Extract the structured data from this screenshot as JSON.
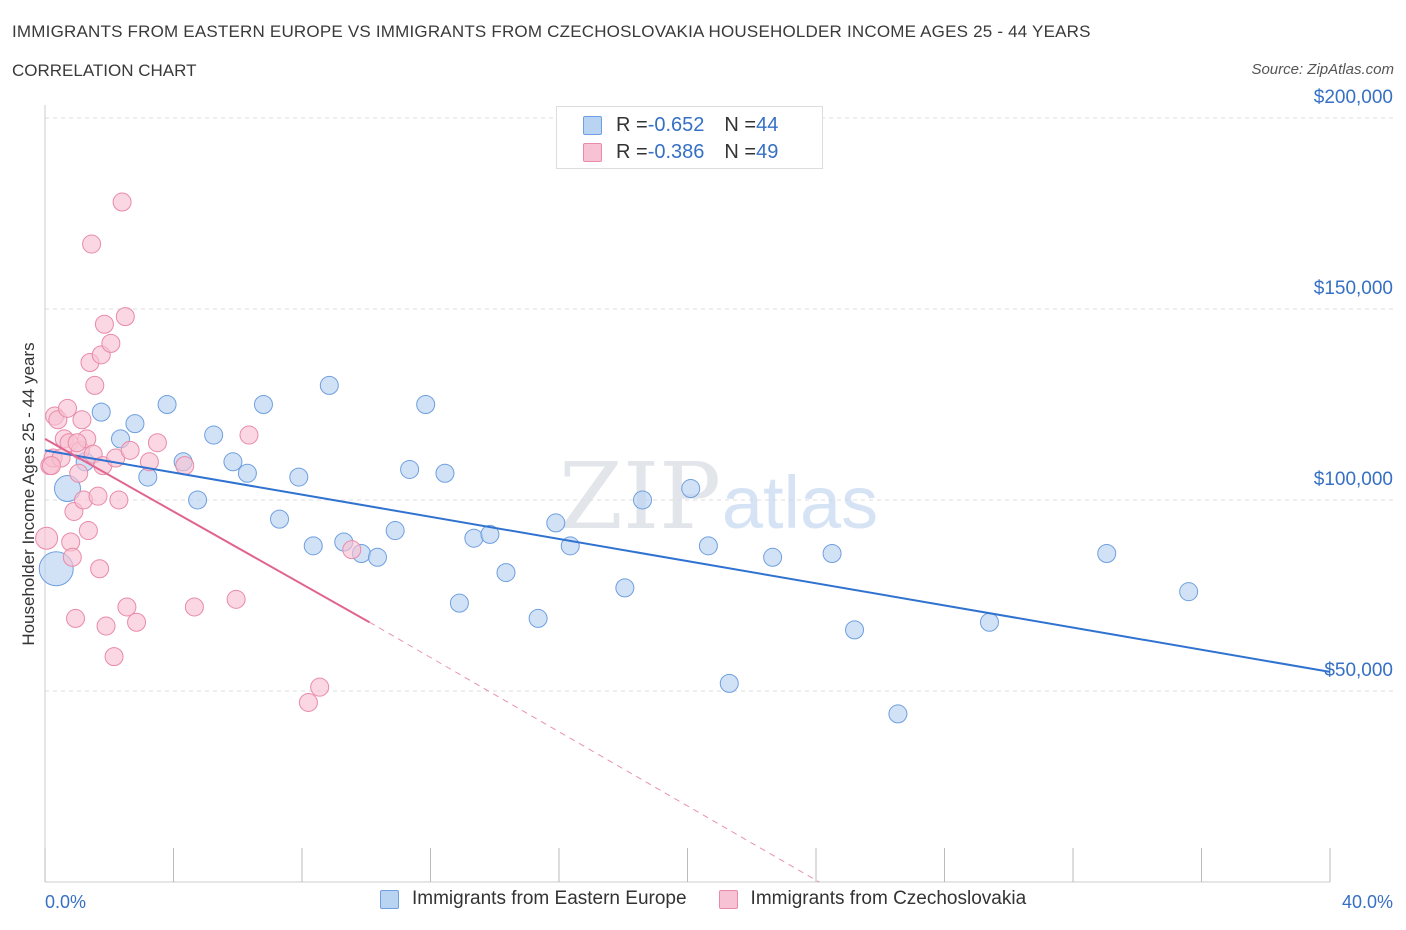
{
  "title": "IMMIGRANTS FROM EASTERN EUROPE VS IMMIGRANTS FROM CZECHOSLOVAKIA HOUSEHOLDER INCOME AGES 25 - 44 YEARS",
  "subtitle": "CORRELATION CHART",
  "source": "Source: ZipAtlas.com",
  "watermark": {
    "zip": "ZIP",
    "atlas": "atlas"
  },
  "legend": {
    "rows": [
      {
        "r_label": "R = ",
        "r_value": "-0.652",
        "n_label": "N = ",
        "n_value": "44"
      },
      {
        "r_label": "R = ",
        "r_value": "-0.386",
        "n_label": "N = ",
        "n_value": "49"
      }
    ]
  },
  "colors": {
    "blue_fill": "#b9d3f3",
    "blue_stroke": "#6f9fde",
    "blue_line": "#2f72d0",
    "pink_fill": "#f7c2d3",
    "pink_stroke": "#e98aa8",
    "pink_line": "#e0648f",
    "axis_label": "#3670c4",
    "grid": "#dddddd"
  },
  "chart_data": {
    "type": "scatter",
    "title": "IMMIGRANTS FROM EASTERN EUROPE VS IMMIGRANTS FROM CZECHOSLOVAKIA HOUSEHOLDER INCOME AGES 25 - 44 YEARS",
    "xlabel": "",
    "ylabel": "Householder Income Ages 25 - 44 years",
    "xlim": [
      0,
      40
    ],
    "ylim": [
      0,
      200000
    ],
    "x_tick_labels": [
      "0.0%",
      "40.0%"
    ],
    "y_ticks": [
      50000,
      100000,
      150000,
      200000
    ],
    "y_tick_labels": [
      "$50,000",
      "$100,000",
      "$150,000",
      "$200,000"
    ],
    "grid": "dashed horizontal",
    "legend_placement": "top-center",
    "series": [
      {
        "name": "Immigrants from Eastern Europe",
        "color": "#6f9fde",
        "points": [
          [
            0.35,
            82000
          ],
          [
            0.7,
            103000
          ],
          [
            1.25,
            110000
          ],
          [
            1.75,
            123000
          ],
          [
            2.35,
            116000
          ],
          [
            2.8,
            120000
          ],
          [
            3.2,
            106000
          ],
          [
            3.8,
            125000
          ],
          [
            4.3,
            110000
          ],
          [
            4.75,
            100000
          ],
          [
            5.25,
            117000
          ],
          [
            5.85,
            110000
          ],
          [
            6.3,
            107000
          ],
          [
            6.8,
            125000
          ],
          [
            7.3,
            95000
          ],
          [
            7.9,
            106000
          ],
          [
            8.35,
            88000
          ],
          [
            8.85,
            130000
          ],
          [
            9.3,
            89000
          ],
          [
            9.85,
            86000
          ],
          [
            10.35,
            85000
          ],
          [
            10.9,
            92000
          ],
          [
            11.35,
            108000
          ],
          [
            11.85,
            125000
          ],
          [
            12.45,
            107000
          ],
          [
            12.9,
            73000
          ],
          [
            13.35,
            90000
          ],
          [
            13.85,
            91000
          ],
          [
            14.35,
            81000
          ],
          [
            15.35,
            69000
          ],
          [
            15.9,
            94000
          ],
          [
            16.35,
            88000
          ],
          [
            18.05,
            77000
          ],
          [
            18.6,
            100000
          ],
          [
            20.1,
            103000
          ],
          [
            20.65,
            88000
          ],
          [
            21.3,
            52000
          ],
          [
            22.65,
            85000
          ],
          [
            24.5,
            86000
          ],
          [
            25.2,
            66000
          ],
          [
            26.55,
            44000
          ],
          [
            29.4,
            68000
          ],
          [
            33.05,
            86000
          ],
          [
            35.6,
            76000
          ]
        ],
        "trend": {
          "x": [
            0.0,
            40.0
          ],
          "y": [
            113000,
            55000
          ]
        }
      },
      {
        "name": "Immigrants from Czechoslovakia",
        "color": "#e98aa8",
        "points": [
          [
            0.05,
            90000
          ],
          [
            0.15,
            109000
          ],
          [
            0.25,
            111000
          ],
          [
            0.3,
            122000
          ],
          [
            0.4,
            121000
          ],
          [
            0.5,
            111000
          ],
          [
            0.6,
            116000
          ],
          [
            0.7,
            124000
          ],
          [
            0.75,
            115000
          ],
          [
            0.8,
            89000
          ],
          [
            0.85,
            85000
          ],
          [
            0.9,
            97000
          ],
          [
            0.95,
            69000
          ],
          [
            1.05,
            107000
          ],
          [
            1.1,
            113000
          ],
          [
            1.15,
            121000
          ],
          [
            1.2,
            100000
          ],
          [
            1.3,
            116000
          ],
          [
            1.35,
            92000
          ],
          [
            1.4,
            136000
          ],
          [
            1.45,
            167000
          ],
          [
            1.5,
            112000
          ],
          [
            1.55,
            130000
          ],
          [
            1.65,
            101000
          ],
          [
            1.7,
            82000
          ],
          [
            1.75,
            138000
          ],
          [
            1.8,
            109000
          ],
          [
            1.85,
            146000
          ],
          [
            1.9,
            67000
          ],
          [
            2.05,
            141000
          ],
          [
            2.15,
            59000
          ],
          [
            2.2,
            111000
          ],
          [
            2.3,
            100000
          ],
          [
            2.4,
            178000
          ],
          [
            2.5,
            148000
          ],
          [
            2.55,
            72000
          ],
          [
            2.65,
            113000
          ],
          [
            2.85,
            68000
          ],
          [
            3.25,
            110000
          ],
          [
            3.5,
            115000
          ],
          [
            4.35,
            109000
          ],
          [
            4.65,
            72000
          ],
          [
            5.95,
            74000
          ],
          [
            6.35,
            117000
          ],
          [
            8.2,
            47000
          ],
          [
            8.55,
            51000
          ],
          [
            9.55,
            87000
          ],
          [
            0.2,
            109000
          ],
          [
            1.0,
            115000
          ]
        ],
        "trend": {
          "x": [
            0.0,
            10.1
          ],
          "y": [
            116000,
            68000
          ]
        },
        "trend_extension": {
          "x": [
            10.1,
            24.1
          ],
          "y": [
            68000,
            0
          ]
        }
      }
    ]
  },
  "bottom_legend": [
    {
      "label": "Immigrants from Eastern Europe"
    },
    {
      "label": "Immigrants from Czechoslovakia"
    }
  ]
}
